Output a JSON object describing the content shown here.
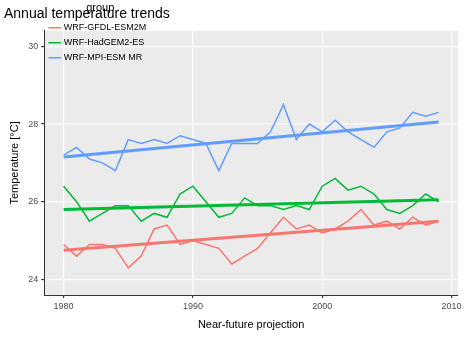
{
  "chart_data": {
    "type": "line",
    "title": "Annual temperature trends",
    "x_label": "Near-future projection",
    "y_label": "Temperature [°C]",
    "legend_title": "group",
    "legend": "top-left",
    "grid": true,
    "x": [
      1980,
      1981,
      1982,
      1983,
      1984,
      1985,
      1986,
      1987,
      1988,
      1989,
      1990,
      1991,
      1992,
      1993,
      1994,
      1995,
      1996,
      1997,
      1998,
      1999,
      2000,
      2001,
      2002,
      2003,
      2004,
      2005,
      2006,
      2007,
      2008,
      2009
    ],
    "xlim": [
      1978.5,
      2010.5
    ],
    "xticks": [
      1980,
      1990,
      2000,
      2010
    ],
    "ylim": [
      23.6,
      30.4
    ],
    "yticks": [
      24,
      26,
      28,
      30
    ],
    "series": [
      {
        "name": "WRF-GFDL-ESM2M",
        "color": "#F8766D",
        "values": [
          24.9,
          24.6,
          24.9,
          24.9,
          24.8,
          24.3,
          24.6,
          25.3,
          25.4,
          24.9,
          25.0,
          24.9,
          24.8,
          24.4,
          24.6,
          24.8,
          25.2,
          25.6,
          25.3,
          25.4,
          25.2,
          25.3,
          25.5,
          25.8,
          25.4,
          25.5,
          25.3,
          25.6,
          25.4,
          25.5
        ],
        "trend": [
          24.75,
          25.5
        ]
      },
      {
        "name": "WRF-HadGEM2-ES",
        "color": "#00BA38",
        "values": [
          26.4,
          26.0,
          25.5,
          25.7,
          25.9,
          25.9,
          25.5,
          25.7,
          25.6,
          26.2,
          26.4,
          26.0,
          25.6,
          25.7,
          26.1,
          25.9,
          25.9,
          25.8,
          25.9,
          25.8,
          26.4,
          26.6,
          26.3,
          26.4,
          26.2,
          25.8,
          25.7,
          25.9,
          26.2,
          26.0
        ],
        "trend": [
          25.8,
          26.05
        ]
      },
      {
        "name": "WRF-MPI-ESM MR",
        "color": "#619CFF",
        "values": [
          27.2,
          27.4,
          27.1,
          27.0,
          26.8,
          27.6,
          27.5,
          27.6,
          27.5,
          27.7,
          27.6,
          27.5,
          26.8,
          27.5,
          27.5,
          27.5,
          27.8,
          28.5,
          27.6,
          28.0,
          27.8,
          28.1,
          27.8,
          27.6,
          27.4,
          27.8,
          27.9,
          28.3,
          28.2,
          28.3
        ],
        "trend": [
          27.15,
          28.05
        ]
      }
    ]
  }
}
